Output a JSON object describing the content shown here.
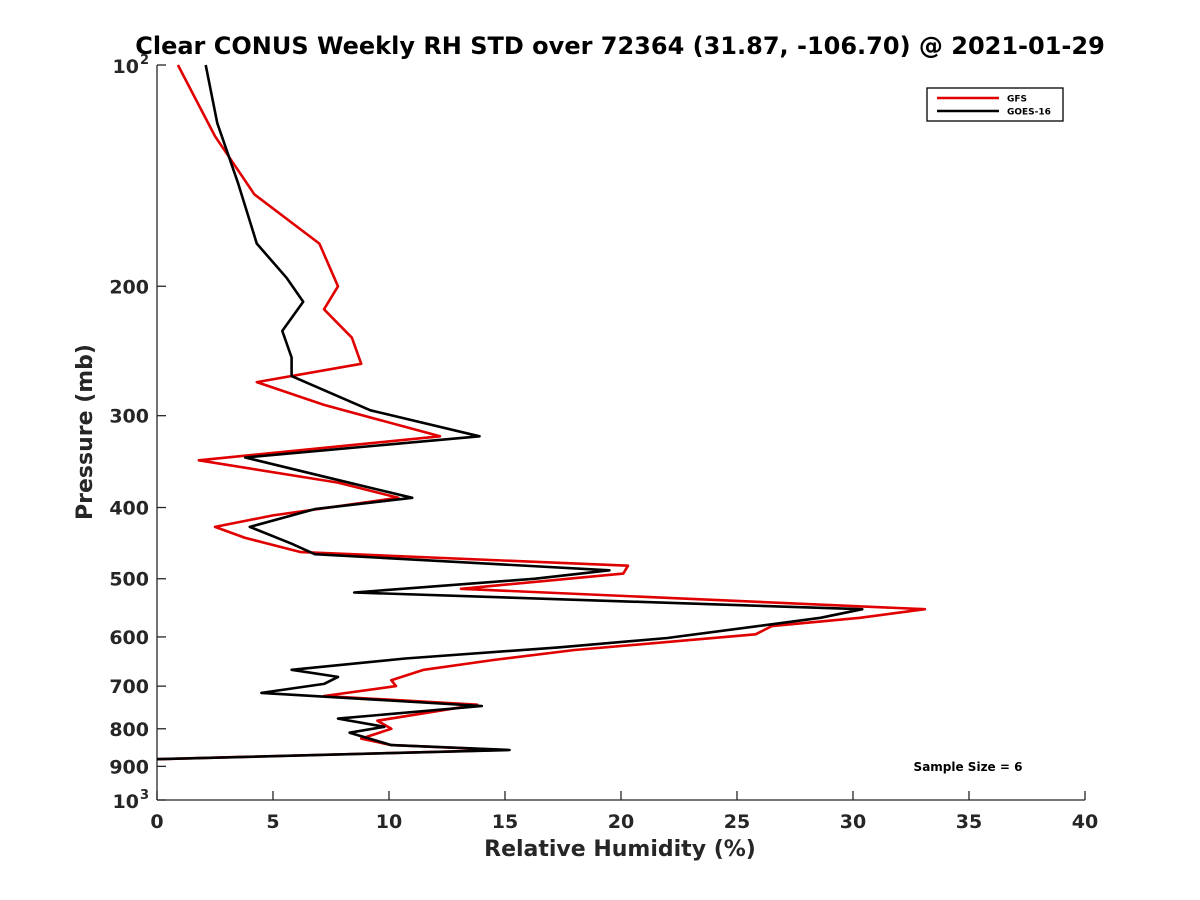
{
  "chart_data": {
    "type": "line",
    "title": "Clear CONUS Weekly RH STD over 72364 (31.87, -106.70) @ 2021-01-29",
    "xlabel": "Relative Humidity (%)",
    "ylabel": "Pressure (mb)",
    "xlim": [
      0,
      40
    ],
    "ylim": [
      100,
      1000
    ],
    "yscale": "log",
    "y_reversed": true,
    "x_ticks": [
      0,
      5,
      10,
      15,
      20,
      25,
      30,
      35,
      40
    ],
    "x_tick_labels": [
      "0",
      "5",
      "10",
      "15",
      "20",
      "25",
      "30",
      "35",
      "40"
    ],
    "y_ticks": [
      200,
      300,
      400,
      500,
      600,
      700,
      800,
      900
    ],
    "y_tick_labels": [
      "200",
      "300",
      "400",
      "500",
      "600",
      "700",
      "800",
      "900"
    ],
    "y_decade_ticks": [
      {
        "value": 100,
        "base": "10",
        "exp": "2"
      },
      {
        "value": 1000,
        "base": "10",
        "exp": "3"
      }
    ],
    "grid": false,
    "legend_position": "top-right",
    "annotation": "Sample Size = 6",
    "series": [
      {
        "name": "GFS",
        "color": "#e00000",
        "points": [
          [
            0.9,
            100
          ],
          [
            2.5,
            125
          ],
          [
            4.2,
            150
          ],
          [
            7.0,
            175
          ],
          [
            7.8,
            200
          ],
          [
            7.2,
            215
          ],
          [
            8.4,
            235
          ],
          [
            8.8,
            255
          ],
          [
            4.3,
            270
          ],
          [
            7.2,
            290
          ],
          [
            12.2,
            320
          ],
          [
            1.8,
            345
          ],
          [
            7.8,
            370
          ],
          [
            10.4,
            388
          ],
          [
            5.0,
            410
          ],
          [
            2.5,
            425
          ],
          [
            3.8,
            440
          ],
          [
            6.2,
            460
          ],
          [
            20.3,
            480
          ],
          [
            20.1,
            492
          ],
          [
            13.1,
            516
          ],
          [
            33.1,
            550
          ],
          [
            30.3,
            565
          ],
          [
            26.5,
            580
          ],
          [
            25.8,
            595
          ],
          [
            18.0,
            625
          ],
          [
            14.5,
            645
          ],
          [
            11.5,
            665
          ],
          [
            10.1,
            687
          ],
          [
            10.3,
            700
          ],
          [
            7.2,
            722
          ],
          [
            13.8,
            742
          ],
          [
            9.5,
            780
          ],
          [
            10.1,
            800
          ],
          [
            8.8,
            825
          ],
          [
            10.1,
            842
          ],
          [
            15.0,
            855
          ],
          [
            0.0,
            880
          ]
        ]
      },
      {
        "name": "GOES-16",
        "color": "#000000",
        "points": [
          [
            2.1,
            100
          ],
          [
            2.6,
            120
          ],
          [
            3.5,
            145
          ],
          [
            4.3,
            175
          ],
          [
            5.6,
            195
          ],
          [
            6.3,
            210
          ],
          [
            5.4,
            230
          ],
          [
            5.8,
            250
          ],
          [
            5.8,
            265
          ],
          [
            9.2,
            295
          ],
          [
            13.9,
            320
          ],
          [
            3.8,
            342
          ],
          [
            7.5,
            365
          ],
          [
            11.0,
            388
          ],
          [
            6.8,
            402
          ],
          [
            4.0,
            425
          ],
          [
            5.8,
            448
          ],
          [
            6.8,
            463
          ],
          [
            19.5,
            487
          ],
          [
            16.3,
            500
          ],
          [
            8.5,
            522
          ],
          [
            30.4,
            550
          ],
          [
            28.6,
            565
          ],
          [
            22.0,
            602
          ],
          [
            17.3,
            620
          ],
          [
            10.7,
            642
          ],
          [
            5.8,
            665
          ],
          [
            7.8,
            680
          ],
          [
            7.2,
            695
          ],
          [
            4.5,
            715
          ],
          [
            14.0,
            745
          ],
          [
            7.8,
            775
          ],
          [
            9.8,
            795
          ],
          [
            8.3,
            810
          ],
          [
            10.1,
            842
          ],
          [
            15.2,
            855
          ],
          [
            0.0,
            880
          ]
        ]
      }
    ]
  }
}
